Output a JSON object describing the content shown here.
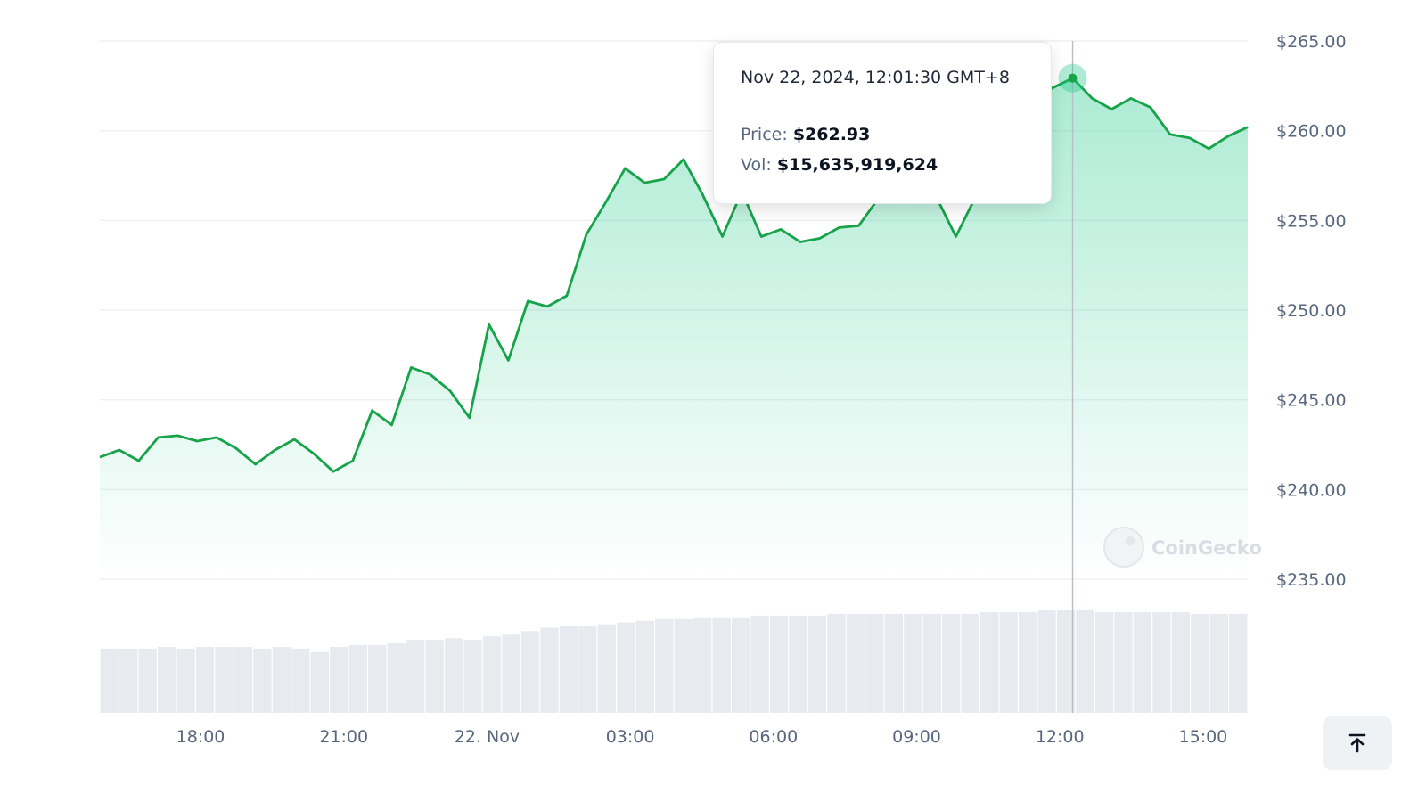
{
  "chart_data": {
    "type": "area",
    "x_tick_labels": [
      "18:00",
      "21:00",
      "22. Nov",
      "03:00",
      "06:00",
      "09:00",
      "12:00",
      "15:00"
    ],
    "y_tick_labels": [
      "$265.00",
      "$260.00",
      "$255.00",
      "$250.00",
      "$245.00",
      "$240.00",
      "$235.00"
    ],
    "ylim": [
      235,
      265
    ],
    "grid": true,
    "series": [
      {
        "values": [
          241.8,
          242.2,
          241.6,
          242.9,
          243.0,
          242.7,
          242.9,
          242.3,
          241.4,
          242.2,
          242.8,
          242.0,
          241.0,
          241.6,
          244.4,
          243.6,
          246.8,
          246.4,
          245.5,
          244.0,
          249.2,
          247.2,
          250.5,
          250.2,
          250.8,
          254.2,
          256.0,
          257.9,
          257.1,
          257.3,
          258.4,
          256.4,
          254.1,
          256.6,
          254.1,
          254.5,
          253.8,
          254.0,
          254.6,
          254.7,
          256.2,
          256.6,
          258.0,
          256.3,
          254.1,
          256.3,
          256.4,
          258.0,
          261.9,
          262.4,
          262.93,
          261.8,
          261.2,
          261.8,
          261.3,
          259.8,
          259.6,
          259.0,
          259.7,
          260.2
        ]
      }
    ],
    "volume": [
      3.7,
      3.7,
      3.7,
      3.8,
      3.7,
      3.8,
      3.8,
      3.8,
      3.7,
      3.8,
      3.7,
      3.5,
      3.8,
      3.9,
      3.9,
      4.0,
      4.2,
      4.2,
      4.3,
      4.2,
      4.4,
      4.5,
      4.7,
      4.9,
      5.0,
      5.0,
      5.1,
      5.2,
      5.3,
      5.4,
      5.4,
      5.5,
      5.5,
      5.5,
      5.6,
      5.6,
      5.6,
      5.6,
      5.7,
      5.7,
      5.7,
      5.7,
      5.7,
      5.7,
      5.7,
      5.7,
      5.8,
      5.8,
      5.8,
      5.9,
      5.9,
      5.9,
      5.8,
      5.8,
      5.8,
      5.8,
      5.8,
      5.7,
      5.7,
      5.7
    ],
    "hover_index": 50,
    "line_color": "#16a34a",
    "fill_color": "#16c784",
    "volume_bar_color": "#e7eaee",
    "crosshair_color": "#b9bec6"
  },
  "tooltip": {
    "date": "Nov 22, 2024, 12:01:30 GMT+8",
    "price_label": "Price:",
    "price_value": "$262.93",
    "vol_label": "Vol:",
    "vol_value": "$15,635,919,624"
  },
  "watermark": {
    "text": "CoinGecko"
  },
  "scroll_top": {
    "icon": "arrow-up-to-line-icon"
  }
}
